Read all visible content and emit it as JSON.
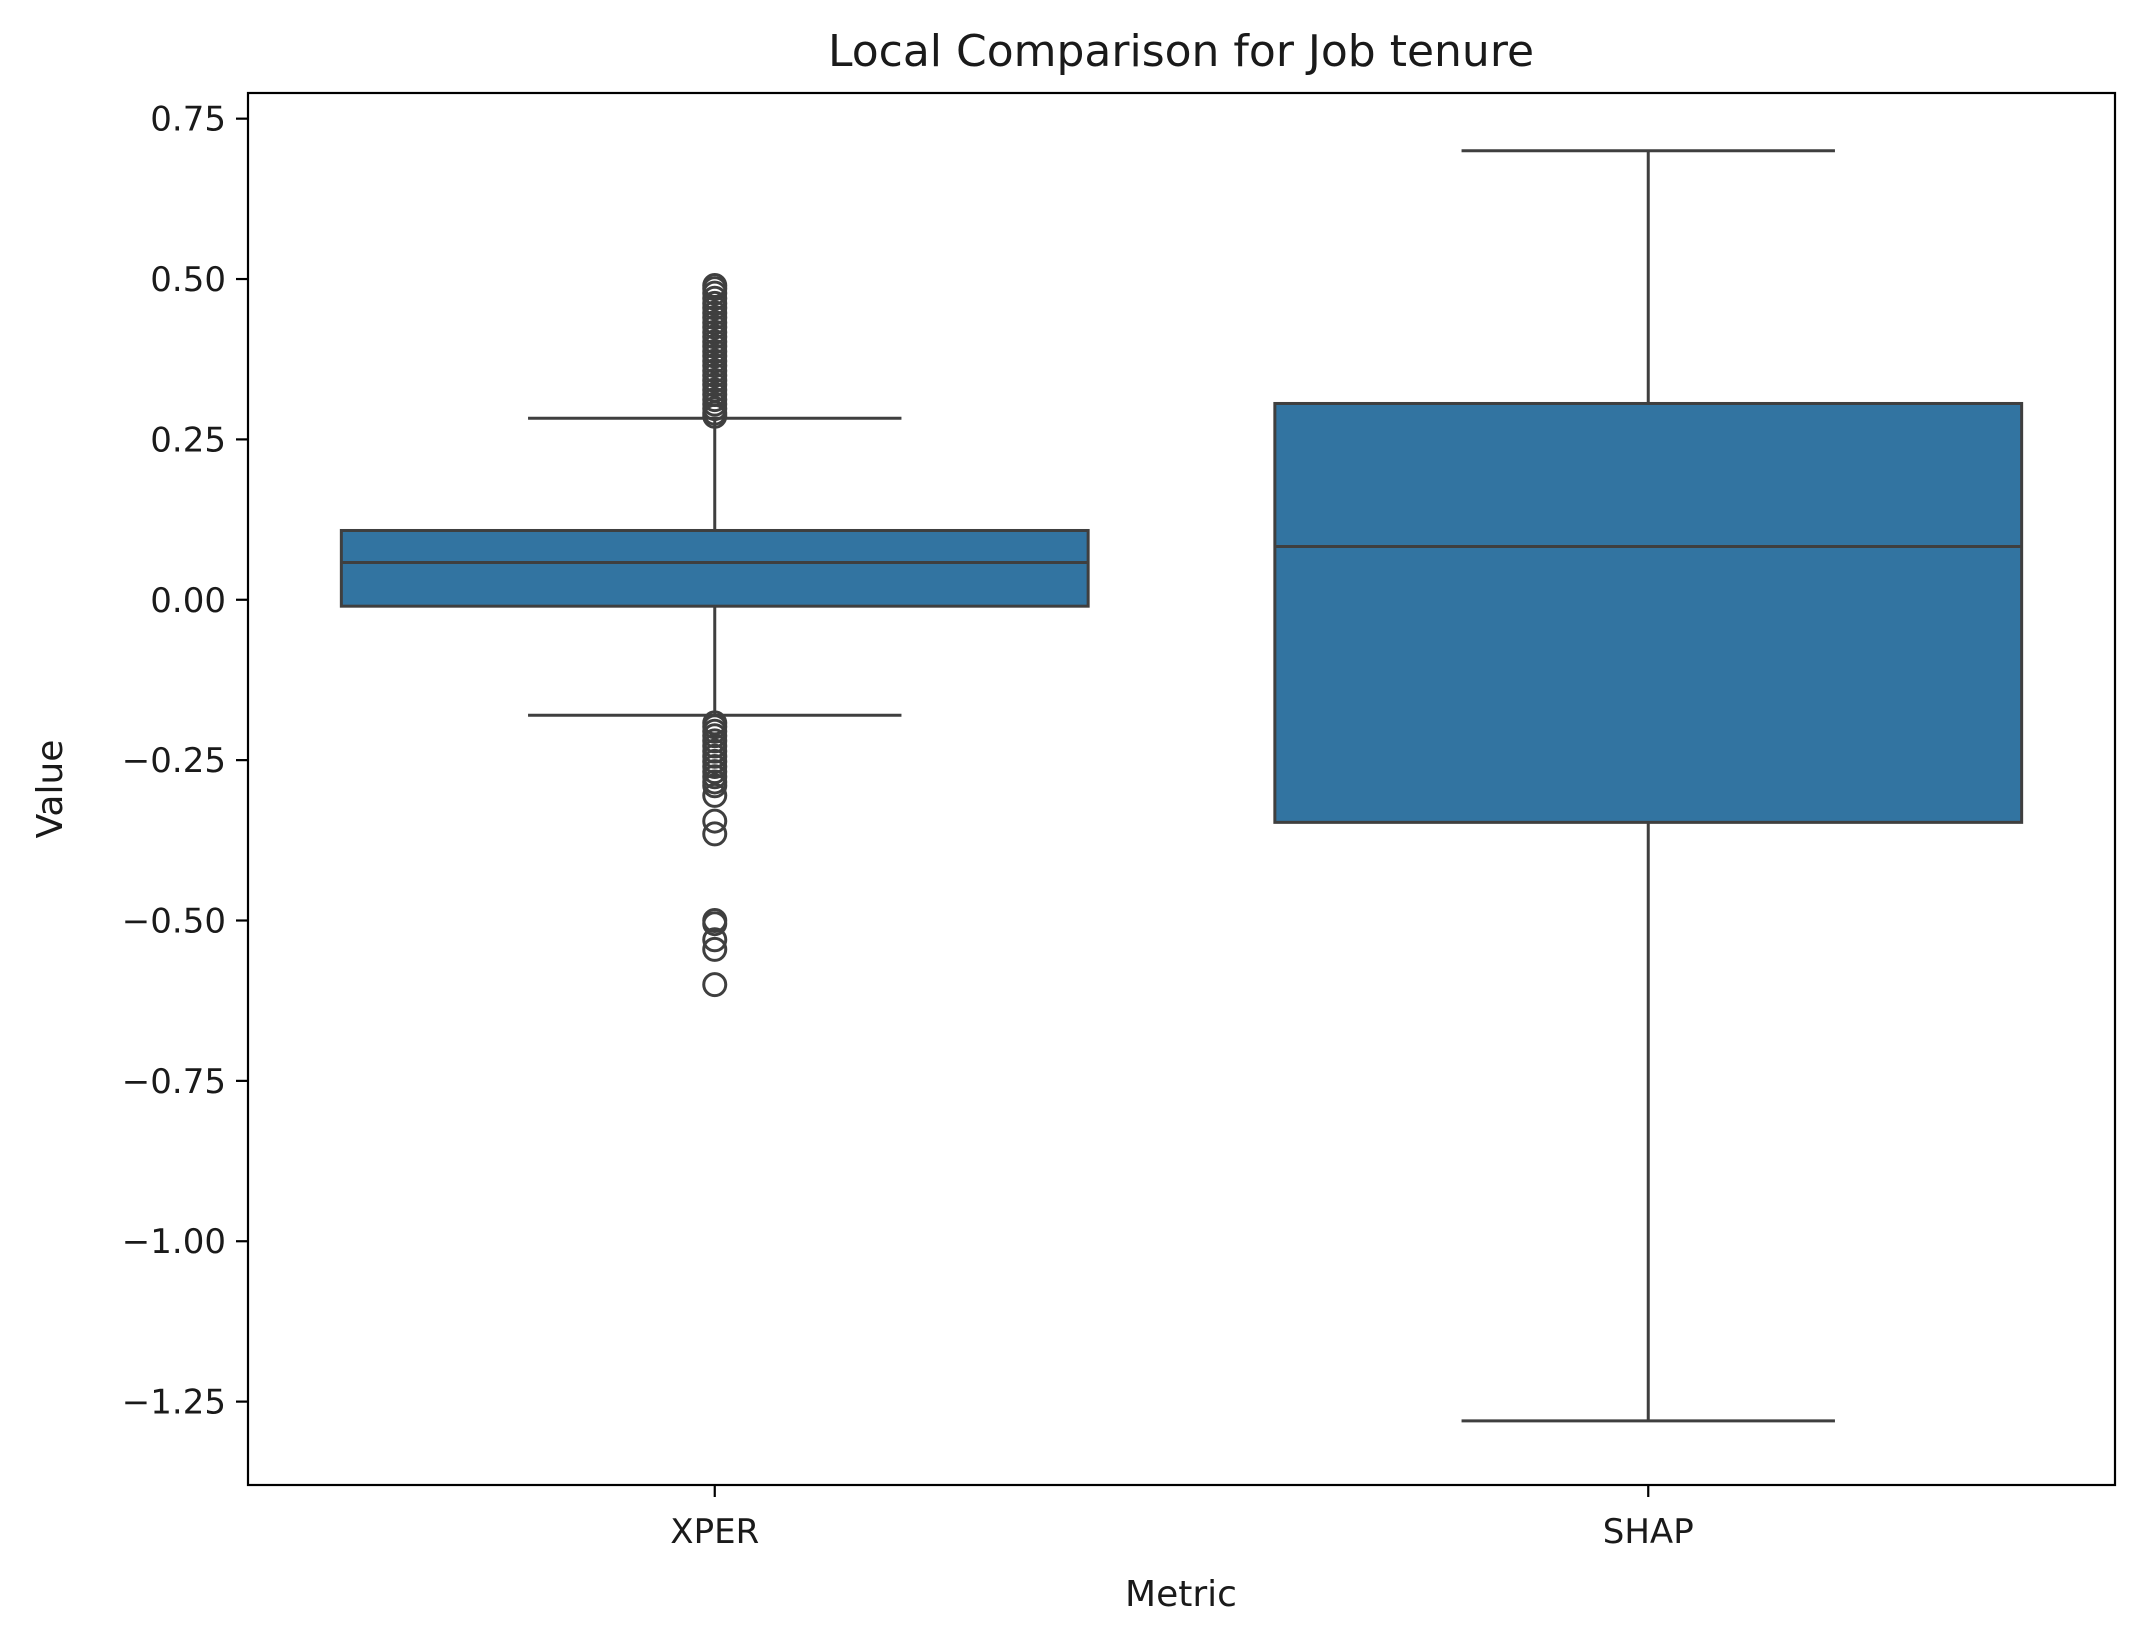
{
  "chart_data": {
    "type": "box",
    "title": "Local Comparison for Job tenure",
    "xlabel": "Metric",
    "ylabel": "Value",
    "ylim": [
      -1.38,
      0.79
    ],
    "yticks": [
      0.75,
      0.5,
      0.25,
      0.0,
      -0.25,
      -0.5,
      -0.75,
      -1.0,
      -1.25
    ],
    "ytick_labels": [
      "0.75",
      "0.50",
      "0.25",
      "0.00",
      "−0.25",
      "−0.50",
      "−0.75",
      "−1.00",
      "−1.25"
    ],
    "categories": [
      "XPER",
      "SHAP"
    ],
    "grid": false,
    "colors": {
      "box_fill": "#3274a1",
      "box_edge": "#3f3f3f",
      "axis": "#000000"
    },
    "boxes": [
      {
        "category": "XPER",
        "whisker_low": -0.18,
        "q1": -0.01,
        "median": 0.058,
        "q3": 0.108,
        "whisker_high": 0.283,
        "outliers": [
          0.49,
          0.485,
          0.478,
          0.47,
          0.462,
          0.455,
          0.447,
          0.44,
          0.432,
          0.425,
          0.417,
          0.41,
          0.402,
          0.395,
          0.387,
          0.38,
          0.372,
          0.365,
          0.357,
          0.35,
          0.342,
          0.335,
          0.327,
          0.32,
          0.312,
          0.305,
          0.298,
          0.291,
          0.286,
          -0.192,
          -0.198,
          -0.205,
          -0.212,
          -0.22,
          -0.228,
          -0.236,
          -0.244,
          -0.252,
          -0.26,
          -0.268,
          -0.276,
          -0.284,
          -0.29,
          -0.305,
          -0.345,
          -0.365,
          -0.5,
          -0.505,
          -0.53,
          -0.545,
          -0.6
        ]
      },
      {
        "category": "SHAP",
        "whisker_low": -1.28,
        "q1": -0.347,
        "median": 0.083,
        "q3": 0.306,
        "whisker_high": 0.7,
        "outliers": []
      }
    ]
  }
}
